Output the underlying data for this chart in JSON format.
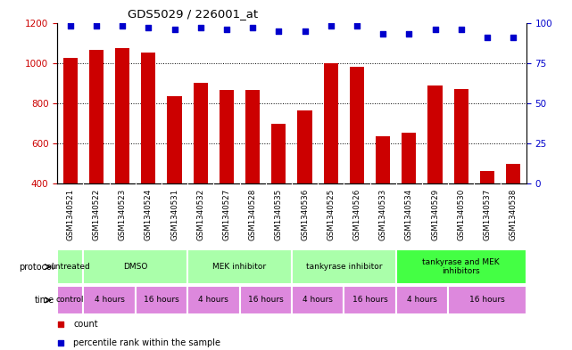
{
  "title": "GDS5029 / 226001_at",
  "samples": [
    "GSM1340521",
    "GSM1340522",
    "GSM1340523",
    "GSM1340524",
    "GSM1340531",
    "GSM1340532",
    "GSM1340527",
    "GSM1340528",
    "GSM1340535",
    "GSM1340536",
    "GSM1340525",
    "GSM1340526",
    "GSM1340533",
    "GSM1340534",
    "GSM1340529",
    "GSM1340530",
    "GSM1340537",
    "GSM1340538"
  ],
  "counts": [
    1025,
    1065,
    1075,
    1050,
    835,
    900,
    865,
    865,
    700,
    765,
    1000,
    980,
    635,
    655,
    890,
    870,
    465,
    500
  ],
  "percentiles": [
    98,
    98,
    98,
    97,
    96,
    97,
    96,
    97,
    95,
    95,
    98,
    98,
    93,
    93,
    96,
    96,
    91,
    91
  ],
  "bar_color": "#CC0000",
  "dot_color": "#0000CC",
  "ylim_left": [
    400,
    1200
  ],
  "ylim_right": [
    0,
    100
  ],
  "yticks_left": [
    400,
    600,
    800,
    1000,
    1200
  ],
  "yticks_right": [
    0,
    25,
    50,
    75,
    100
  ],
  "plot_bg_color": "#ffffff",
  "xticklabel_bg": "#cccccc",
  "protocol_groups": [
    {
      "label": "untreated",
      "start": 0,
      "end": 1,
      "color": "#aaffaa"
    },
    {
      "label": "DMSO",
      "start": 1,
      "end": 5,
      "color": "#aaffaa"
    },
    {
      "label": "MEK inhibitor",
      "start": 5,
      "end": 9,
      "color": "#aaffaa"
    },
    {
      "label": "tankyrase inhibitor",
      "start": 9,
      "end": 13,
      "color": "#aaffaa"
    },
    {
      "label": "tankyrase and MEK\ninhibitors",
      "start": 13,
      "end": 18,
      "color": "#44ff44"
    }
  ],
  "time_groups": [
    {
      "label": "control",
      "start": 0,
      "end": 1,
      "color": "#dd88dd"
    },
    {
      "label": "4 hours",
      "start": 1,
      "end": 3,
      "color": "#dd88dd"
    },
    {
      "label": "16 hours",
      "start": 3,
      "end": 5,
      "color": "#dd88dd"
    },
    {
      "label": "4 hours",
      "start": 5,
      "end": 7,
      "color": "#dd88dd"
    },
    {
      "label": "16 hours",
      "start": 7,
      "end": 9,
      "color": "#dd88dd"
    },
    {
      "label": "4 hours",
      "start": 9,
      "end": 11,
      "color": "#dd88dd"
    },
    {
      "label": "16 hours",
      "start": 11,
      "end": 13,
      "color": "#dd88dd"
    },
    {
      "label": "4 hours",
      "start": 13,
      "end": 15,
      "color": "#dd88dd"
    },
    {
      "label": "16 hours",
      "start": 15,
      "end": 18,
      "color": "#dd88dd"
    }
  ],
  "legend_count_color": "#CC0000",
  "legend_percentile_color": "#0000CC",
  "ylabel_left_color": "#CC0000",
  "ylabel_right_color": "#0000CC"
}
